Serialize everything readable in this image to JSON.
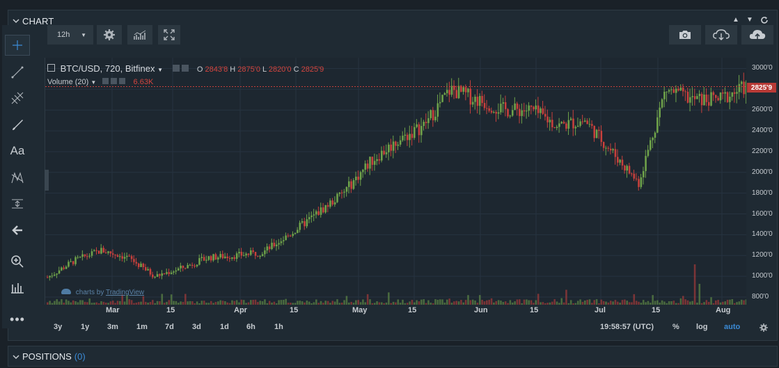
{
  "chart_panel": {
    "title": "CHART"
  },
  "toolbar": {
    "interval": "12h"
  },
  "legend": {
    "symbol": "BTC/USD, 720, Bitfinex",
    "o_label": "O",
    "o_value": "2843'8",
    "h_label": "H",
    "h_value": "2875'0",
    "l_label": "L",
    "l_value": "2820'0",
    "c_label": "C",
    "c_value": "2825'9",
    "volume_label": "Volume (20)",
    "volume_value": "6.63K"
  },
  "last_price": "2825'9",
  "watermark": {
    "prefix": "charts by",
    "brand": "TradingView"
  },
  "price_axis_labels": [
    "3000'0",
    "2800'0",
    "2600'0",
    "2400'0",
    "2200'0",
    "2000'0",
    "1800'0",
    "1600'0",
    "1400'0",
    "1200'0",
    "1000'0",
    "800'0"
  ],
  "time_axis_labels": [
    "Mar",
    "15",
    "Apr",
    "15",
    "May",
    "15",
    "Jun",
    "15",
    "Jul",
    "15",
    "Aug"
  ],
  "ranges": [
    "3y",
    "1y",
    "3m",
    "1m",
    "7d",
    "3d",
    "1d",
    "6h",
    "1h"
  ],
  "clock": "19:58:57 (UTC)",
  "scale_options": {
    "percent": "%",
    "log": "log",
    "auto": "auto"
  },
  "positions_panel": {
    "title": "POSITIONS",
    "count": "(0)"
  },
  "colors": {
    "up": "#6fa34a",
    "down": "#c9403c",
    "accent": "#3b8bd6",
    "background": "#1d2730"
  },
  "chart_data": {
    "type": "candlestick",
    "symbol": "BTC/USD",
    "ylim": [
      780,
      3050
    ],
    "x": [
      "Feb 23",
      "Mar 1",
      "Mar 8",
      "Mar 15",
      "Mar 22",
      "Apr 1",
      "Apr 8",
      "Apr 15",
      "Apr 22",
      "May 1",
      "May 8",
      "May 15",
      "May 22",
      "May 29",
      "Jun 1",
      "Jun 8",
      "Jun 12",
      "Jun 15",
      "Jun 22",
      "Jul 1",
      "Jul 8",
      "Jul 15",
      "Jul 17",
      "Jul 22",
      "Jul 29",
      "Aug 1",
      "Aug 6"
    ],
    "close": [
      990,
      1150,
      1250,
      1180,
      1000,
      1080,
      1180,
      1200,
      1230,
      1400,
      1600,
      1800,
      2100,
      2300,
      2450,
      2800,
      2700,
      2600,
      2600,
      2450,
      2500,
      2200,
      1900,
      2800,
      2700,
      2700,
      2826
    ],
    "volume_peak": 6630
  }
}
